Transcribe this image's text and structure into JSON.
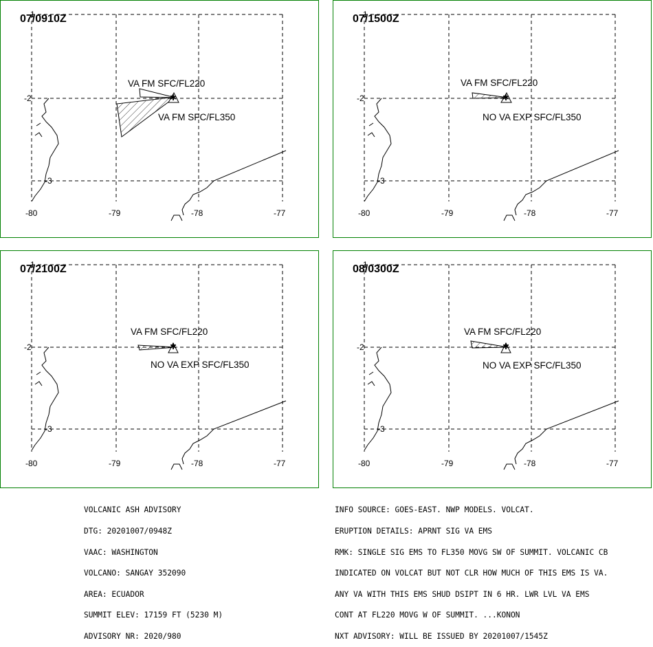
{
  "panels": [
    {
      "time": "07/0910Z",
      "labels": [
        {
          "text": "VA FM SFC/FL220"
        },
        {
          "text": "VA FM SFC/FL350"
        }
      ],
      "lon_ticks": [
        "-80",
        "-79",
        "-78",
        "-77"
      ],
      "lat_ticks": [
        "-2",
        "-3"
      ],
      "lat_top": "-1"
    },
    {
      "time": "07/1500Z",
      "labels": [
        {
          "text": "VA FM SFC/FL220"
        },
        {
          "text": "NO VA EXP SFC/FL350"
        }
      ],
      "lon_ticks": [
        "-80",
        "-79",
        "-78",
        "-77"
      ],
      "lat_ticks": [
        "-2",
        "-3"
      ],
      "lat_top": "-1"
    },
    {
      "time": "07/2100Z",
      "labels": [
        {
          "text": "VA FM SFC/FL220"
        },
        {
          "text": "NO VA EXP SFC/FL350"
        }
      ],
      "lon_ticks": [
        "-80",
        "-79",
        "-78",
        "-77"
      ],
      "lat_ticks": [
        "-2",
        "-3"
      ],
      "lat_top": "-1"
    },
    {
      "time": "08/0300Z",
      "labels": [
        {
          "text": "VA FM SFC/FL220"
        },
        {
          "text": "NO VA EXP SFC/FL350"
        }
      ],
      "lon_ticks": [
        "-80",
        "-79",
        "-78",
        "-77"
      ],
      "lat_ticks": [
        "-2",
        "-3"
      ],
      "lat_top": "-1"
    }
  ],
  "advisory_left": [
    "VOLCANIC ASH ADVISORY",
    "DTG: 20201007/0948Z",
    "VAAC: WASHINGTON",
    "VOLCANO: SANGAY 352090",
    "AREA: ECUADOR",
    "SUMMIT ELEV: 17159 FT (5230 M)",
    "ADVISORY NR: 2020/980"
  ],
  "advisory_right": [
    "INFO SOURCE: GOES-EAST. NWP MODELS. VOLCAT.",
    "ERUPTION DETAILS: APRNT SIG VA EMS",
    "RMK: SINGLE SIG EMS TO FL350 MOVG SW OF SUMMIT. VOLCANIC CB",
    "INDICATED ON VOLCAT BUT NOT CLR HOW MUCH OF THIS EMS IS VA.",
    "ANY VA WITH THIS EMS SHUD DSIPT IN 6 HR. LWR LVL VA EMS",
    "CONT AT FL220 MOVG W OF SUMMIT. ...KONON",
    "NXT ADVISORY: WILL BE ISSUED BY 20201007/1545Z"
  ],
  "colors": {
    "frame": "#008000",
    "ink": "#000000"
  },
  "symbols": {
    "volcano": "volcano-triangle-icon",
    "summit": "summit-star-icon"
  }
}
